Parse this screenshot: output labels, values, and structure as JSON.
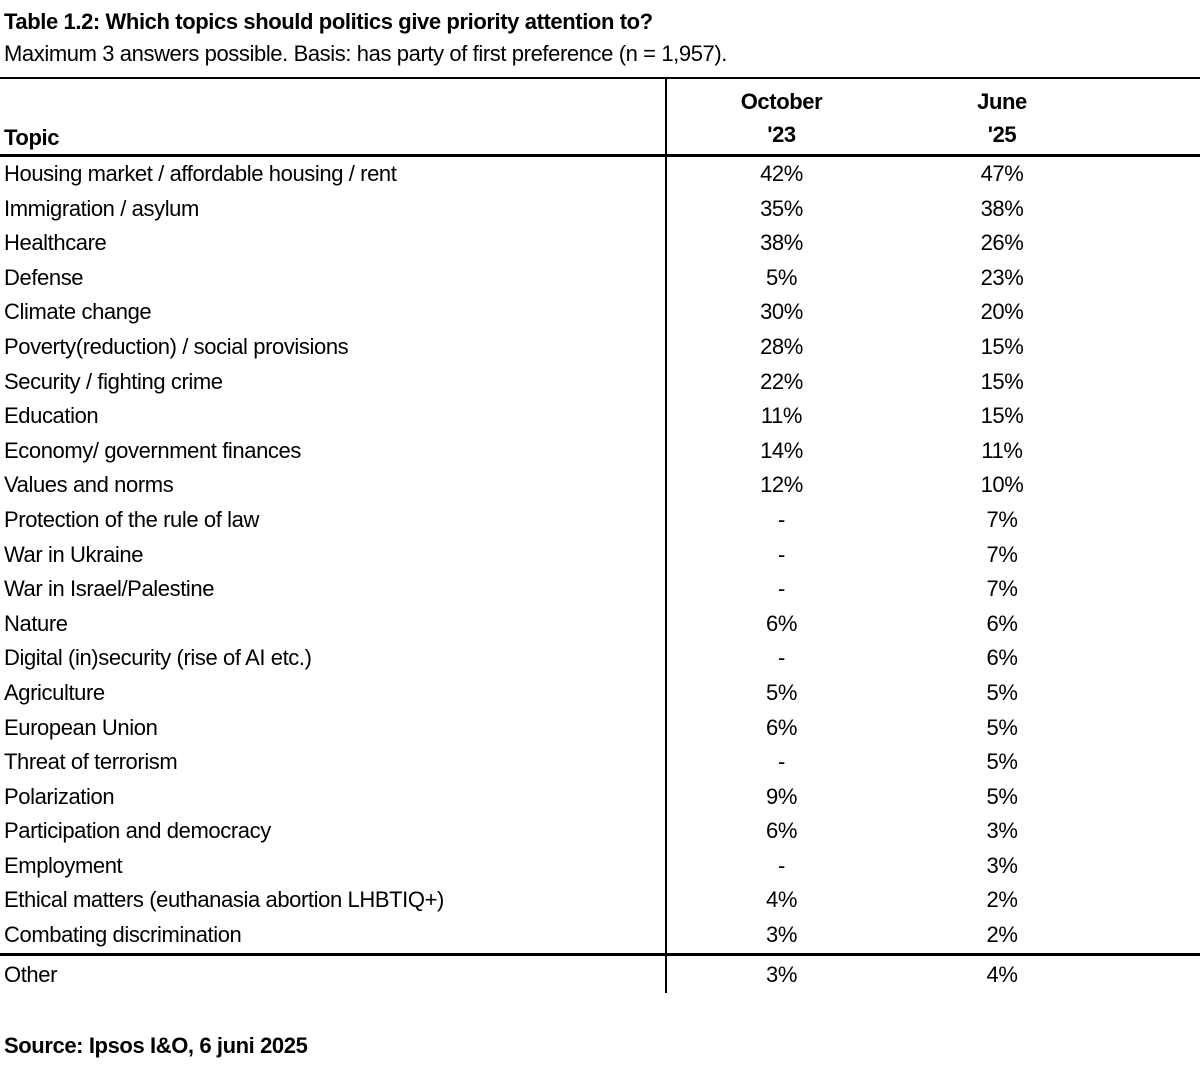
{
  "title": "Table 1.2: Which topics should politics give priority attention to?",
  "subtitle": "Maximum 3 answers possible. Basis: has party of first preference (n = 1,957).",
  "table": {
    "topic_header": "Topic",
    "columns": [
      {
        "line1": "October",
        "line2": "'23"
      },
      {
        "line1": "June",
        "line2": "'25"
      }
    ],
    "rows": [
      {
        "topic": "Housing market / affordable housing / rent",
        "oct": "42%",
        "june": "47%"
      },
      {
        "topic": "Immigration / asylum",
        "oct": "35%",
        "june": "38%"
      },
      {
        "topic": "Healthcare",
        "oct": "38%",
        "june": "26%"
      },
      {
        "topic": "Defense",
        "oct": "5%",
        "june": "23%"
      },
      {
        "topic": "Climate change",
        "oct": "30%",
        "june": "20%"
      },
      {
        "topic": "Poverty(reduction) / social provisions",
        "oct": "28%",
        "june": "15%"
      },
      {
        "topic": "Security / fighting crime",
        "oct": "22%",
        "june": "15%"
      },
      {
        "topic": "Education",
        "oct": "11%",
        "june": "15%"
      },
      {
        "topic": "Economy/ government finances",
        "oct": "14%",
        "june": "11%"
      },
      {
        "topic": "Values and norms",
        "oct": "12%",
        "june": "10%"
      },
      {
        "topic": "Protection of the rule of law",
        "oct": "-",
        "june": "7%"
      },
      {
        "topic": "War in Ukraine",
        "oct": "-",
        "june": "7%"
      },
      {
        "topic": "War in Israel/Palestine",
        "oct": "-",
        "june": "7%"
      },
      {
        "topic": "Nature",
        "oct": "6%",
        "june": "6%"
      },
      {
        "topic": "Digital (in)security (rise of AI etc.)",
        "oct": "-",
        "june": "6%"
      },
      {
        "topic": "Agriculture",
        "oct": "5%",
        "june": "5%"
      },
      {
        "topic": "European Union",
        "oct": "6%",
        "june": "5%"
      },
      {
        "topic": "Threat of terrorism",
        "oct": "-",
        "june": "5%"
      },
      {
        "topic": "Polarization",
        "oct": "9%",
        "june": "5%"
      },
      {
        "topic": "Participation and democracy",
        "oct": "6%",
        "june": "3%"
      },
      {
        "topic": "Employment",
        "oct": "-",
        "june": "3%"
      },
      {
        "topic": "Ethical matters (euthanasia abortion LHBTIQ+)",
        "oct": "4%",
        "june": "2%"
      },
      {
        "topic": "Combating discrimination",
        "oct": "3%",
        "june": "2%"
      }
    ],
    "footer_row": {
      "topic": "Other",
      "oct": "3%",
      "june": "4%"
    }
  },
  "source": "Source: Ipsos I&O, 6 juni 2025",
  "chart_data": {
    "type": "table",
    "title": "Table 1.2: Which topics should politics give priority attention to?",
    "subtitle": "Maximum 3 answers possible. Basis: has party of first preference (n = 1,957).",
    "unit": "%",
    "categories": [
      "Housing market / affordable housing / rent",
      "Immigration / asylum",
      "Healthcare",
      "Defense",
      "Climate change",
      "Poverty(reduction) / social provisions",
      "Security / fighting crime",
      "Education",
      "Economy/ government finances",
      "Values and norms",
      "Protection of the rule of law",
      "War in Ukraine",
      "War in Israel/Palestine",
      "Nature",
      "Digital (in)security (rise of AI etc.)",
      "Agriculture",
      "European Union",
      "Threat of terrorism",
      "Polarization",
      "Participation and democracy",
      "Employment",
      "Ethical matters (euthanasia abortion LHBTIQ+)",
      "Combating discrimination",
      "Other"
    ],
    "series": [
      {
        "name": "October '23",
        "values": [
          42,
          35,
          38,
          5,
          30,
          28,
          22,
          11,
          14,
          12,
          null,
          null,
          null,
          6,
          null,
          5,
          6,
          null,
          9,
          6,
          null,
          4,
          3,
          3
        ]
      },
      {
        "name": "June '25",
        "values": [
          47,
          38,
          26,
          23,
          20,
          15,
          15,
          15,
          11,
          10,
          7,
          7,
          7,
          6,
          6,
          5,
          5,
          5,
          5,
          3,
          3,
          2,
          2,
          4
        ]
      }
    ],
    "source": "Source: Ipsos I&O, 6 juni 2025"
  }
}
